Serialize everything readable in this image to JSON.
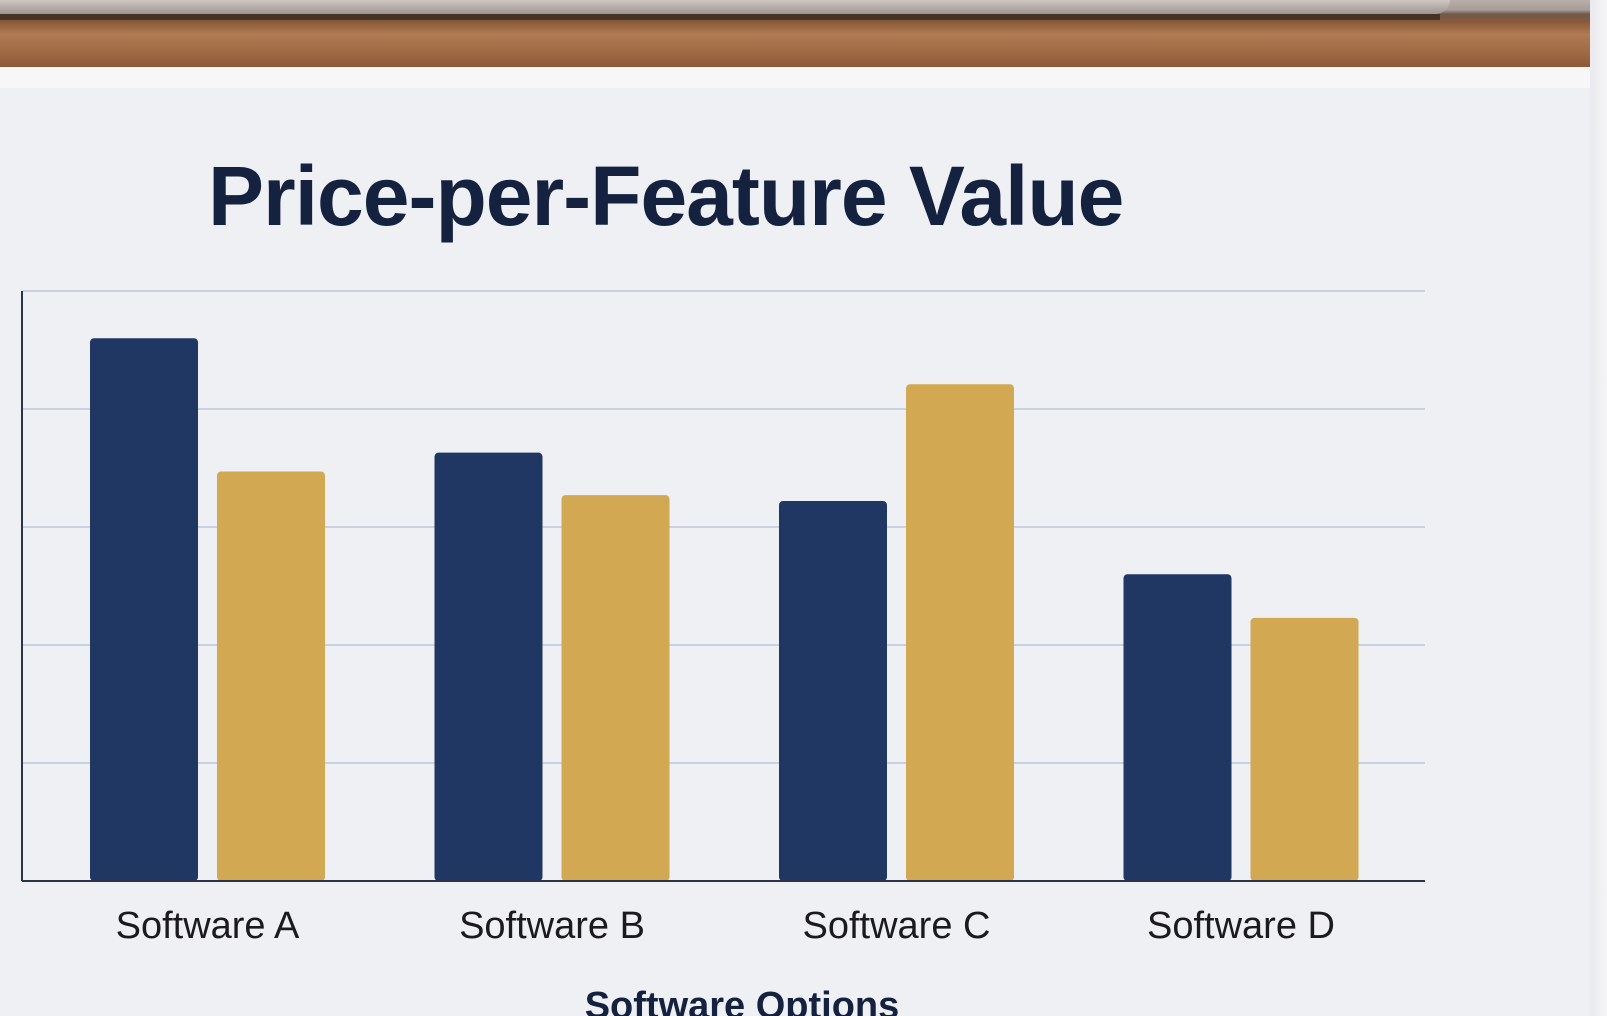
{
  "chart_data": {
    "type": "bar",
    "title": "Price-per-Feature Value",
    "xlabel": "Software Options",
    "ylabel": "",
    "categories": [
      "Software A",
      "Software B",
      "Software C",
      "Software D"
    ],
    "series": [
      {
        "color": "#213763",
        "values": [
          4.6,
          3.63,
          3.22,
          2.6
        ]
      },
      {
        "color": "#d3a853",
        "values": [
          3.47,
          3.27,
          4.21,
          2.23
        ]
      }
    ],
    "ylim": [
      0,
      5
    ],
    "grid": true,
    "legend": "none"
  }
}
